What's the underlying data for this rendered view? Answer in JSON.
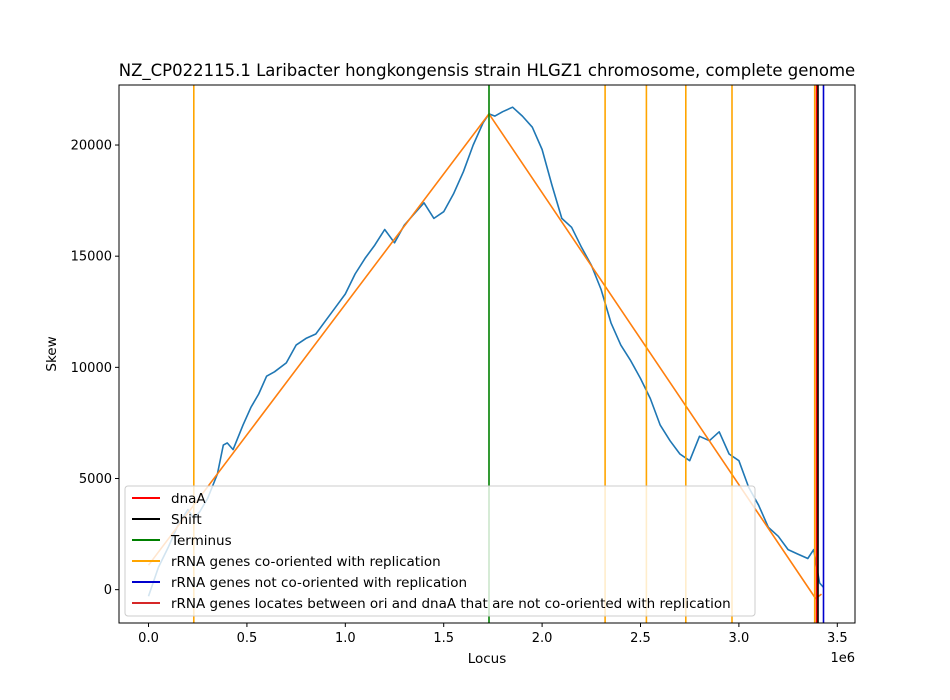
{
  "chart_data": {
    "type": "line",
    "title": "NZ_CP022115.1 Laribacter hongkongensis strain HLGZ1 chromosome, complete genome",
    "xlabel": "Locus",
    "ylabel": "Skew",
    "x_offset_label": "1e6",
    "xlim": [
      -150000,
      3590000
    ],
    "ylim": [
      -1500,
      22700
    ],
    "x_ticks": [
      0,
      500000,
      1000000,
      1500000,
      2000000,
      2500000,
      3000000,
      3500000
    ],
    "x_tick_labels": [
      "0.0",
      "0.5",
      "1.0",
      "1.5",
      "2.0",
      "2.5",
      "3.0",
      "3.5"
    ],
    "y_ticks": [
      0,
      5000,
      10000,
      15000,
      20000
    ],
    "y_tick_labels": [
      "0",
      "5000",
      "10000",
      "15000",
      "20000"
    ],
    "grid": false,
    "legend_placement": "lower-left",
    "series": [
      {
        "key": "skew",
        "color": "#1f77b4",
        "x": [
          0,
          50000,
          100000,
          150000,
          200000,
          230000,
          260000,
          300000,
          350000,
          380000,
          400000,
          430000,
          480000,
          520000,
          560000,
          600000,
          640000,
          700000,
          750000,
          800000,
          850000,
          900000,
          950000,
          1000000,
          1050000,
          1100000,
          1150000,
          1200000,
          1250000,
          1300000,
          1350000,
          1400000,
          1450000,
          1500000,
          1550000,
          1600000,
          1650000,
          1700000,
          1730000,
          1760000,
          1800000,
          1850000,
          1900000,
          1950000,
          2000000,
          2050000,
          2100000,
          2150000,
          2200000,
          2250000,
          2300000,
          2350000,
          2400000,
          2450000,
          2500000,
          2550000,
          2600000,
          2650000,
          2700000,
          2750000,
          2800000,
          2850000,
          2900000,
          2950000,
          3000000,
          3050000,
          3100000,
          3150000,
          3200000,
          3250000,
          3300000,
          3350000,
          3380000,
          3410000,
          3430000
        ],
        "y": [
          -300,
          1000,
          1900,
          2900,
          3600,
          3200,
          3500,
          4100,
          5200,
          6500,
          6600,
          6300,
          7400,
          8200,
          8800,
          9600,
          9800,
          10200,
          11000,
          11300,
          11500,
          12100,
          12700,
          13300,
          14200,
          14900,
          15500,
          16200,
          15600,
          16400,
          16900,
          17400,
          16700,
          17000,
          17800,
          18800,
          20000,
          21000,
          21400,
          21300,
          21500,
          21700,
          21300,
          20800,
          19800,
          18200,
          16700,
          16300,
          15400,
          14600,
          13500,
          12000,
          11000,
          10300,
          9500,
          8600,
          7400,
          6700,
          6100,
          5800,
          6900,
          6700,
          7100,
          6100,
          5800,
          4600,
          3800,
          2800,
          2400,
          1800,
          1600,
          1400,
          1800,
          300,
          100
        ]
      },
      {
        "key": "model",
        "color": "#ff7f0e",
        "x": [
          0,
          1730000,
          3390000,
          3420000
        ],
        "y": [
          1100,
          21400,
          -400,
          -200
        ]
      }
    ],
    "vertical_lines": [
      {
        "name": "Terminus",
        "x": 1730000,
        "color": "#008000"
      },
      {
        "name": "rRNA genes co-oriented with replication",
        "x": 230000,
        "color": "#ffa500"
      },
      {
        "name": "rRNA genes co-oriented with replication",
        "x": 2320000,
        "color": "#ffa500"
      },
      {
        "name": "rRNA genes co-oriented with replication",
        "x": 2530000,
        "color": "#ffa500"
      },
      {
        "name": "rRNA genes co-oriented with replication",
        "x": 2730000,
        "color": "#ffa500"
      },
      {
        "name": "rRNA genes co-oriented with replication",
        "x": 2965000,
        "color": "#ffa500"
      },
      {
        "name": "rRNA genes co-oriented with replication",
        "x": 3385000,
        "color": "#ffa500"
      },
      {
        "name": "dnaA",
        "x": 3395000,
        "color": "#ff0000"
      },
      {
        "name": "Shift",
        "x": 3402000,
        "color": "#000000"
      },
      {
        "name": "rRNA genes not co-oriented with replication",
        "x": 3430000,
        "color": "#0000cd"
      }
    ],
    "legend": [
      {
        "label": "dnaA",
        "color": "#ff0000"
      },
      {
        "label": "Shift",
        "color": "#000000"
      },
      {
        "label": "Terminus",
        "color": "#008000"
      },
      {
        "label": "rRNA genes co-oriented with replication",
        "color": "#ffa500"
      },
      {
        "label": "rRNA genes not co-oriented with replication",
        "color": "#0000cd"
      },
      {
        "label": "rRNA genes locates between ori and dnaA that are not co-oriented with replication",
        "color": "#d62728"
      }
    ]
  }
}
